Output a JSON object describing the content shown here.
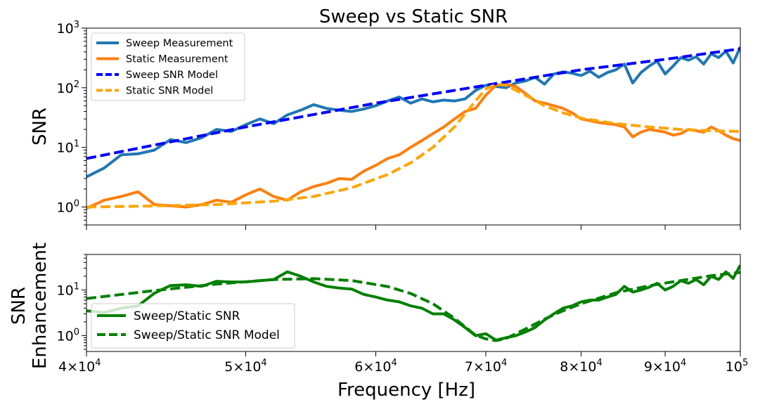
{
  "chart_data": [
    {
      "id": "top",
      "type": "line",
      "title": "Sweep vs Static SNR",
      "xlabel": "",
      "ylabel": "SNR",
      "xscale": "log",
      "yscale": "log",
      "xlim": [
        40000,
        100000
      ],
      "ylim": [
        0.5,
        1000
      ],
      "legend_position": "top-left",
      "yticks": [
        {
          "value": 1,
          "base": "10",
          "exp": "0"
        },
        {
          "value": 10,
          "base": "10",
          "exp": "1"
        },
        {
          "value": 100,
          "base": "10",
          "exp": "2"
        },
        {
          "value": 1000,
          "base": "10",
          "exp": "3"
        }
      ],
      "series": [
        {
          "name": "Sweep Measurement",
          "color": "#1f77b4",
          "style": "solid",
          "x": [
            40000,
            41000,
            42000,
            43000,
            44000,
            45000,
            46000,
            47000,
            48000,
            49000,
            50000,
            51000,
            52000,
            53000,
            54000,
            55000,
            56000,
            57000,
            58000,
            59000,
            60000,
            61000,
            62000,
            63000,
            64000,
            65000,
            66000,
            67000,
            68000,
            69000,
            70000,
            71000,
            72000,
            73000,
            74000,
            75000,
            76000,
            77000,
            78000,
            79000,
            80000,
            81000,
            82000,
            83000,
            84000,
            85000,
            86000,
            87000,
            88000,
            89000,
            90000,
            91000,
            92000,
            93000,
            94000,
            95000,
            96000,
            97000,
            98000,
            99000,
            100000
          ],
          "y": [
            3.2,
            4.5,
            7.5,
            7.8,
            9.0,
            13.5,
            12.0,
            14.5,
            20.0,
            18.5,
            24.0,
            30.0,
            25.0,
            35.0,
            42.0,
            52.0,
            45.0,
            42.0,
            40.0,
            44.0,
            50.0,
            60.0,
            70.0,
            55.0,
            65.0,
            58.0,
            62.0,
            60.0,
            65.0,
            90.0,
            110.0,
            105.0,
            100.0,
            120.0,
            130.0,
            150.0,
            115.0,
            170.0,
            185.0,
            175.0,
            160.0,
            190.0,
            150.0,
            180.0,
            200.0,
            250.0,
            120.0,
            180.0,
            230.0,
            280.0,
            170.0,
            230.0,
            320.0,
            290.0,
            330.0,
            250.0,
            370.0,
            320.0,
            410.0,
            260.0,
            480.0
          ]
        },
        {
          "name": "Static Measurement",
          "color": "#ff7f0e",
          "style": "solid",
          "x": [
            40000,
            41000,
            42000,
            43000,
            44000,
            45000,
            46000,
            47000,
            48000,
            49000,
            50000,
            51000,
            52000,
            53000,
            54000,
            55000,
            56000,
            57000,
            58000,
            59000,
            60000,
            61000,
            62000,
            63000,
            64000,
            65000,
            66000,
            67000,
            68000,
            69000,
            70000,
            71000,
            72000,
            73000,
            74000,
            75000,
            76000,
            77000,
            78000,
            79000,
            80000,
            81000,
            82000,
            83000,
            84000,
            85000,
            86000,
            87000,
            88000,
            89000,
            90000,
            91000,
            92000,
            93000,
            94000,
            95000,
            96000,
            97000,
            98000,
            99000,
            100000
          ],
          "y": [
            0.95,
            1.3,
            1.5,
            1.8,
            1.1,
            1.05,
            1.0,
            1.1,
            1.3,
            1.2,
            1.6,
            2.0,
            1.5,
            1.3,
            1.8,
            2.2,
            2.5,
            3.0,
            2.9,
            4.0,
            5.0,
            6.5,
            7.5,
            10.0,
            13.0,
            17.0,
            22.0,
            30.0,
            40.0,
            45.0,
            75.0,
            110.0,
            115.0,
            105.0,
            80.0,
            60.0,
            55.0,
            50.0,
            45.0,
            38.0,
            30.0,
            28.0,
            26.0,
            25.0,
            24.0,
            22.0,
            15.0,
            18.0,
            20.0,
            19.0,
            18.0,
            16.0,
            17.0,
            20.0,
            19.0,
            18.0,
            22.0,
            19.0,
            16.0,
            14.0,
            13.0
          ]
        },
        {
          "name": "Sweep SNR Model",
          "color": "#0000ff",
          "style": "dashed",
          "x": [
            40000,
            50000,
            60000,
            70000,
            80000,
            90000,
            100000
          ],
          "y": [
            6.5,
            22.0,
            55.0,
            110.0,
            200.0,
            300.0,
            450.0
          ]
        },
        {
          "name": "Static SNR Model",
          "color": "#ffa500",
          "style": "dashed",
          "x": [
            40000,
            44000,
            48000,
            52000,
            55000,
            58000,
            61000,
            63000,
            65000,
            67000,
            69000,
            70000,
            71000,
            72000,
            74000,
            76000,
            78000,
            80000,
            84000,
            88000,
            92000,
            96000,
            100000
          ],
          "y": [
            1.0,
            1.04,
            1.1,
            1.25,
            1.5,
            2.1,
            3.5,
            5.5,
            10.0,
            22.0,
            60.0,
            95.0,
            115.0,
            110.0,
            75.0,
            50.0,
            38.0,
            31.0,
            25.0,
            22.0,
            20.0,
            19.0,
            18.5
          ]
        }
      ]
    },
    {
      "id": "bottom",
      "type": "line",
      "title": "",
      "xlabel": "Frequency [Hz]",
      "ylabel_lines": [
        "SNR",
        "Enhancement"
      ],
      "xscale": "log",
      "yscale": "log",
      "xlim": [
        40000,
        100000
      ],
      "ylim": [
        0.45,
        60
      ],
      "legend_position": "lower-left",
      "yticks": [
        {
          "value": 1,
          "base": "10",
          "exp": "0"
        },
        {
          "value": 10,
          "base": "10",
          "exp": "1"
        }
      ],
      "xticks": [
        {
          "value": 40000,
          "label": "4×10",
          "exp": "4"
        },
        {
          "value": 50000,
          "label": "5×10",
          "exp": "4"
        },
        {
          "value": 60000,
          "label": "6×10",
          "exp": "4"
        },
        {
          "value": 70000,
          "label": "7×10",
          "exp": "4"
        },
        {
          "value": 80000,
          "label": "8×10",
          "exp": "4"
        },
        {
          "value": 90000,
          "label": "9×10",
          "exp": "4"
        },
        {
          "value": 100000,
          "label": "10",
          "exp": "5"
        }
      ],
      "series": [
        {
          "name": "Sweep/Static SNR",
          "color": "#008000",
          "style": "solid",
          "x": [
            40000,
            41000,
            42000,
            43000,
            44000,
            45000,
            46000,
            47000,
            48000,
            49000,
            50000,
            51000,
            52000,
            53000,
            54000,
            55000,
            56000,
            57000,
            58000,
            59000,
            60000,
            61000,
            62000,
            63000,
            64000,
            65000,
            66000,
            67000,
            68000,
            69000,
            70000,
            71000,
            72000,
            73000,
            74000,
            75000,
            76000,
            77000,
            78000,
            79000,
            80000,
            81000,
            82000,
            83000,
            84000,
            85000,
            86000,
            87000,
            88000,
            89000,
            90000,
            91000,
            92000,
            93000,
            94000,
            95000,
            96000,
            97000,
            98000,
            99000,
            100000
          ],
          "y": [
            3.5,
            3.2,
            4.0,
            4.5,
            8.5,
            12.5,
            13.0,
            12.0,
            15.5,
            15.0,
            15.0,
            16.0,
            17.0,
            25.0,
            20.0,
            15.0,
            12.0,
            11.0,
            10.5,
            8.0,
            7.0,
            6.0,
            5.5,
            4.5,
            4.0,
            3.0,
            3.0,
            2.2,
            1.5,
            1.0,
            1.1,
            0.8,
            0.9,
            1.0,
            1.2,
            1.5,
            2.2,
            3.0,
            4.0,
            4.5,
            5.5,
            6.0,
            6.0,
            7.0,
            8.0,
            12.0,
            9.0,
            10.0,
            11.5,
            14.0,
            10.0,
            12.0,
            16.0,
            14.0,
            17.0,
            13.0,
            20.0,
            17.0,
            25.0,
            18.0,
            35.0
          ]
        },
        {
          "name": "Sweep/Static SNR Model",
          "color": "#008000",
          "style": "dashed",
          "x": [
            40000,
            44000,
            48000,
            52000,
            55000,
            58000,
            61000,
            63000,
            65000,
            67000,
            69000,
            70000,
            71000,
            72000,
            74000,
            76000,
            78000,
            80000,
            84000,
            88000,
            92000,
            96000,
            100000
          ],
          "y": [
            6.5,
            9.7,
            13.5,
            16.9,
            17.7,
            16.1,
            11.9,
            8.4,
            5.0,
            2.4,
            1.02,
            0.85,
            0.78,
            0.86,
            1.4,
            2.3,
            3.5,
            5.0,
            8.7,
            12.4,
            16.1,
            20.6,
            24.3
          ]
        }
      ]
    }
  ]
}
